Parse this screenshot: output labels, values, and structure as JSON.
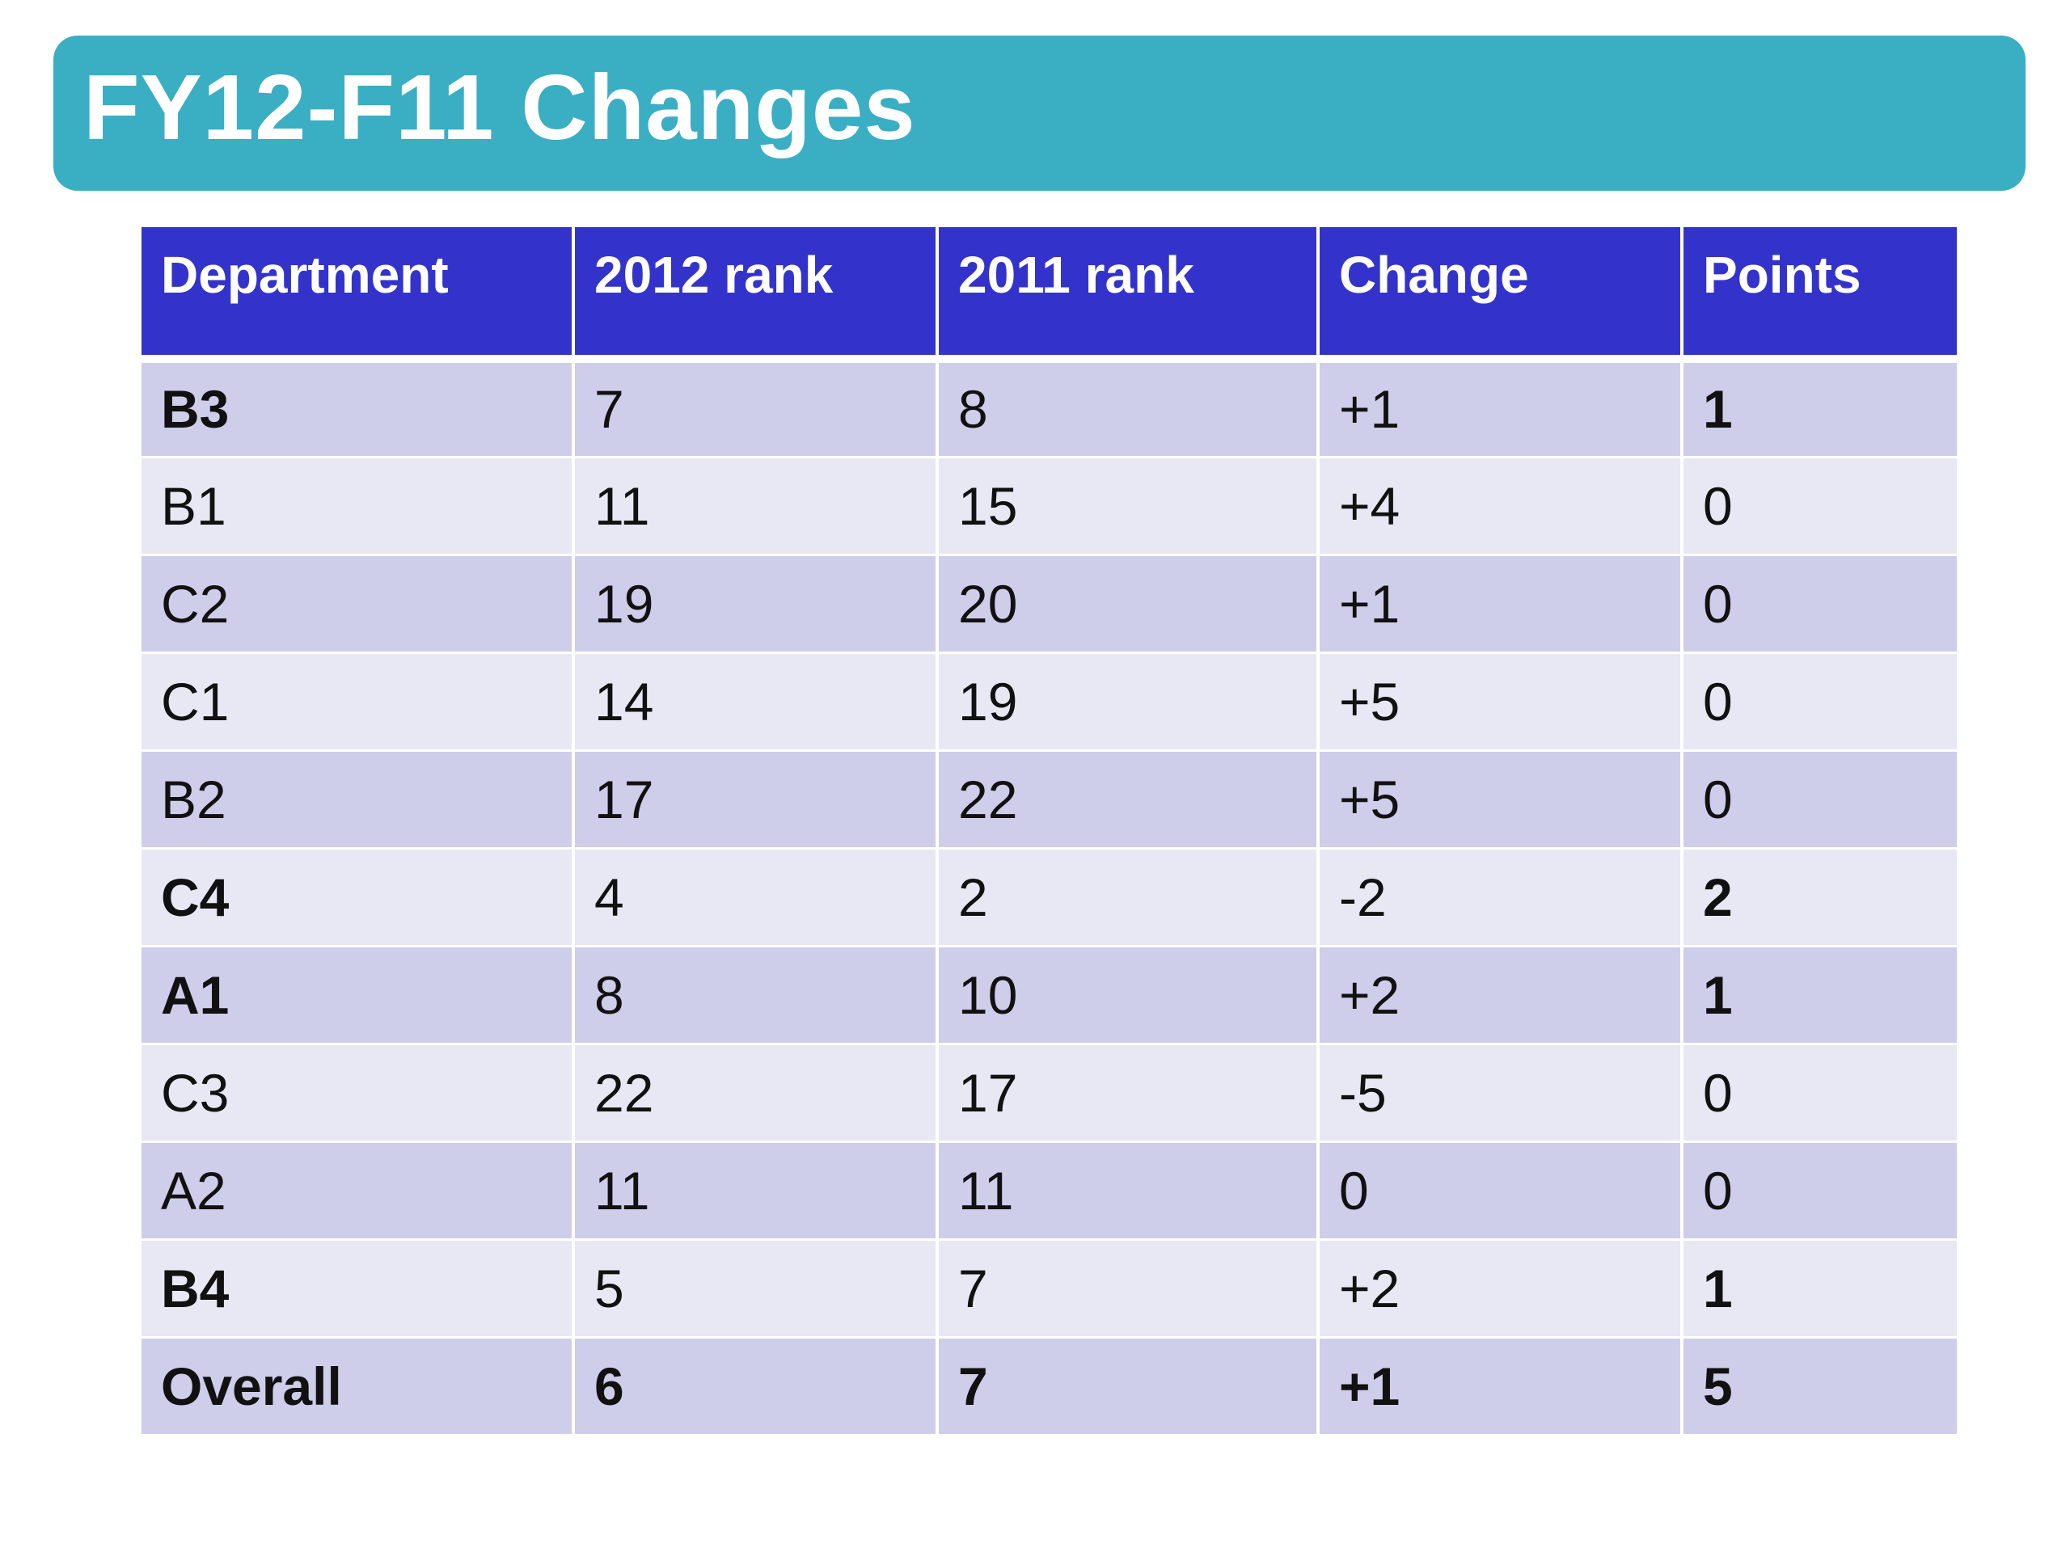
{
  "slide": {
    "title": "FY12-F11 Changes"
  },
  "colors": {
    "banner": "#3aaec2",
    "header": "#3333cc",
    "row_dark": "#cecdea",
    "row_light": "#e8e8f4"
  },
  "table": {
    "headers": [
      "Department",
      "2012 rank",
      "2011 rank",
      "Change",
      "Points"
    ],
    "rows": [
      {
        "department": "B3",
        "rank_2012": "7",
        "rank_2011": "8",
        "change": "+1",
        "points": "1",
        "bold_department": true,
        "bold_points": true,
        "bold_all": false
      },
      {
        "department": "B1",
        "rank_2012": "11",
        "rank_2011": "15",
        "change": "+4",
        "points": "0",
        "bold_department": false,
        "bold_points": false,
        "bold_all": false
      },
      {
        "department": "C2",
        "rank_2012": "19",
        "rank_2011": "20",
        "change": "+1",
        "points": "0",
        "bold_department": false,
        "bold_points": false,
        "bold_all": false
      },
      {
        "department": "C1",
        "rank_2012": "14",
        "rank_2011": "19",
        "change": "+5",
        "points": "0",
        "bold_department": false,
        "bold_points": false,
        "bold_all": false
      },
      {
        "department": "B2",
        "rank_2012": "17",
        "rank_2011": "22",
        "change": "+5",
        "points": "0",
        "bold_department": false,
        "bold_points": false,
        "bold_all": false
      },
      {
        "department": "C4",
        "rank_2012": "4",
        "rank_2011": "2",
        "change": "-2",
        "points": "2",
        "bold_department": true,
        "bold_points": true,
        "bold_all": false
      },
      {
        "department": "A1",
        "rank_2012": "8",
        "rank_2011": "10",
        "change": "+2",
        "points": "1",
        "bold_department": true,
        "bold_points": true,
        "bold_all": false
      },
      {
        "department": "C3",
        "rank_2012": "22",
        "rank_2011": "17",
        "change": "-5",
        "points": "0",
        "bold_department": false,
        "bold_points": false,
        "bold_all": false
      },
      {
        "department": "A2",
        "rank_2012": "11",
        "rank_2011": "11",
        "change": "0",
        "points": "0",
        "bold_department": false,
        "bold_points": false,
        "bold_all": false
      },
      {
        "department": "B4",
        "rank_2012": "5",
        "rank_2011": "7",
        "change": "+2",
        "points": "1",
        "bold_department": true,
        "bold_points": true,
        "bold_all": false
      },
      {
        "department": "Overall",
        "rank_2012": "6",
        "rank_2011": "7",
        "change": "+1",
        "points": "5",
        "bold_department": true,
        "bold_points": true,
        "bold_all": true
      }
    ]
  }
}
